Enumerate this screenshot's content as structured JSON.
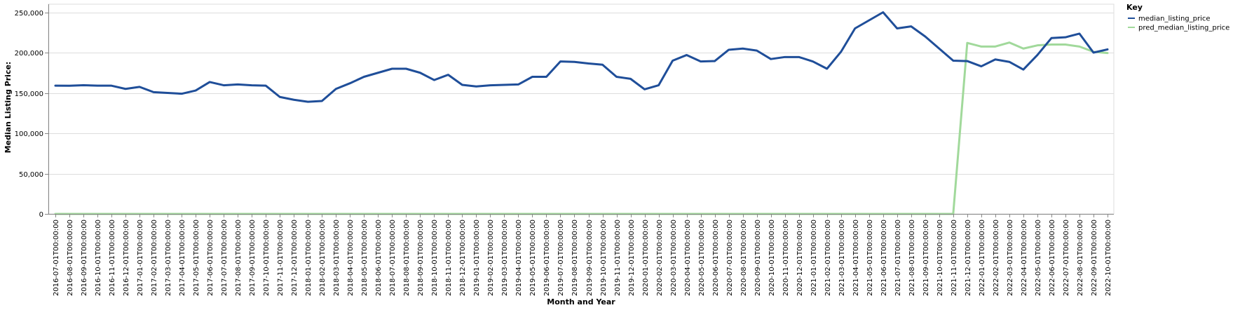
{
  "chart_data": {
    "type": "line",
    "xlabel": "Month and Year",
    "ylabel": "Median Listing Price:",
    "ylim": [
      0,
      260000
    ],
    "yticks": [
      0,
      50000,
      100000,
      150000,
      200000,
      250000
    ],
    "ytick_labels": [
      "0",
      "50,000",
      "100,000",
      "150,000",
      "200,000",
      "250,000"
    ],
    "grid": true,
    "legend": {
      "title": "Key",
      "placement": "top-right"
    },
    "x": [
      "2016-07-01T00:00:00",
      "2016-08-01T00:00:00",
      "2016-09-01T00:00:00",
      "2016-10-01T00:00:00",
      "2016-11-01T00:00:00",
      "2016-12-01T00:00:00",
      "2017-01-01T00:00:00",
      "2017-02-01T00:00:00",
      "2017-03-01T00:00:00",
      "2017-04-01T00:00:00",
      "2017-05-01T00:00:00",
      "2017-06-01T00:00:00",
      "2017-07-01T00:00:00",
      "2017-08-01T00:00:00",
      "2017-09-01T00:00:00",
      "2017-10-01T00:00:00",
      "2017-11-01T00:00:00",
      "2017-12-01T00:00:00",
      "2018-01-01T00:00:00",
      "2018-02-01T00:00:00",
      "2018-03-01T00:00:00",
      "2018-04-01T00:00:00",
      "2018-05-01T00:00:00",
      "2018-06-01T00:00:00",
      "2018-07-01T00:00:00",
      "2018-08-01T00:00:00",
      "2018-09-01T00:00:00",
      "2018-10-01T00:00:00",
      "2018-11-01T00:00:00",
      "2018-12-01T00:00:00",
      "2019-01-01T00:00:00",
      "2019-02-01T00:00:00",
      "2019-03-01T00:00:00",
      "2019-04-01T00:00:00",
      "2019-05-01T00:00:00",
      "2019-06-01T00:00:00",
      "2019-07-01T00:00:00",
      "2019-08-01T00:00:00",
      "2019-09-01T00:00:00",
      "2019-10-01T00:00:00",
      "2019-11-01T00:00:00",
      "2019-12-01T00:00:00",
      "2020-01-01T00:00:00",
      "2020-02-01T00:00:00",
      "2020-03-01T00:00:00",
      "2020-04-01T00:00:00",
      "2020-05-01T00:00:00",
      "2020-06-01T00:00:00",
      "2020-07-01T00:00:00",
      "2020-08-01T00:00:00",
      "2020-09-01T00:00:00",
      "2020-10-01T00:00:00",
      "2020-11-01T00:00:00",
      "2020-12-01T00:00:00",
      "2021-01-01T00:00:00",
      "2021-02-01T00:00:00",
      "2021-03-01T00:00:00",
      "2021-04-01T00:00:00",
      "2021-05-01T00:00:00",
      "2021-06-01T00:00:00",
      "2021-07-01T00:00:00",
      "2021-08-01T00:00:00",
      "2021-09-01T00:00:00",
      "2021-10-01T00:00:00",
      "2021-11-01T00:00:00",
      "2021-12-01T00:00:00",
      "2022-01-01T00:00:00",
      "2022-02-01T00:00:00",
      "2022-03-01T00:00:00",
      "2022-04-01T00:00:00",
      "2022-05-01T00:00:00",
      "2022-06-01T00:00:00",
      "2022-07-01T00:00:00",
      "2022-08-01T00:00:00",
      "2022-09-01T00:00:00",
      "2022-10-01T00:00:00"
    ],
    "series": [
      {
        "name": "median_listing_price",
        "color": "#1f4e99",
        "values": [
          159000,
          158900,
          159600,
          159000,
          159000,
          155000,
          157500,
          151000,
          150000,
          149000,
          153000,
          163500,
          159500,
          160500,
          159500,
          159000,
          145000,
          141500,
          139000,
          140000,
          155000,
          162000,
          170000,
          175000,
          180000,
          180000,
          175000,
          166000,
          172500,
          160000,
          158000,
          159500,
          160000,
          160500,
          170000,
          170000,
          189000,
          188500,
          186500,
          185000,
          170000,
          167500,
          154500,
          159500,
          190000,
          197000,
          189000,
          189500,
          203500,
          205000,
          202500,
          192000,
          194500,
          194500,
          189000,
          180000,
          201000,
          230000,
          240000,
          250000,
          230000,
          232500,
          220000,
          205000,
          190000,
          189500,
          183000,
          191500,
          188500,
          179000,
          197000,
          218000,
          219000,
          223500,
          200000,
          204000
        ]
      },
      {
        "name": "pred_median_listing_price",
        "color": "#a1d99b",
        "values": [
          0,
          0,
          0,
          0,
          0,
          0,
          0,
          0,
          0,
          0,
          0,
          0,
          0,
          0,
          0,
          0,
          0,
          0,
          0,
          0,
          0,
          0,
          0,
          0,
          0,
          0,
          0,
          0,
          0,
          0,
          0,
          0,
          0,
          0,
          0,
          0,
          0,
          0,
          0,
          0,
          0,
          0,
          0,
          0,
          0,
          0,
          0,
          0,
          0,
          0,
          0,
          0,
          0,
          0,
          0,
          0,
          0,
          0,
          0,
          0,
          0,
          0,
          0,
          0,
          0,
          212000,
          207500,
          207500,
          212500,
          205000,
          209000,
          210000,
          210000,
          207500,
          201000,
          199500
        ]
      }
    ]
  }
}
